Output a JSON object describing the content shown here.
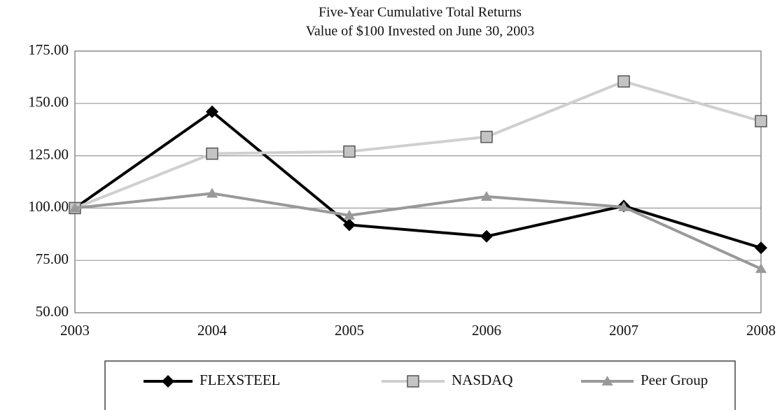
{
  "chart_data": {
    "type": "line",
    "title": "Five-Year Cumulative Total Returns",
    "subtitle": "Value of $100 Invested on June 30, 2003",
    "categories": [
      "2003",
      "2004",
      "2005",
      "2006",
      "2007",
      "2008"
    ],
    "series": [
      {
        "name": "FLEXSTEEL",
        "color": "#000000",
        "marker": "diamond",
        "values": [
          100,
          146,
          92,
          86.5,
          101,
          81
        ]
      },
      {
        "name": "NASDAQ",
        "color": "#cfcfcf",
        "marker": "square",
        "values": [
          100,
          126,
          127,
          134,
          160.5,
          141.5
        ]
      },
      {
        "name": "Peer Group",
        "color": "#999999",
        "marker": "triangle",
        "values": [
          100,
          107,
          96.5,
          105.5,
          100.5,
          71
        ]
      }
    ],
    "ylim": [
      50,
      175
    ],
    "yticks": [
      {
        "value": 50,
        "label": "50.00"
      },
      {
        "value": 75,
        "label": "75.00"
      },
      {
        "value": 100,
        "label": "100.00"
      },
      {
        "value": 125,
        "label": "125.00"
      },
      {
        "value": 150,
        "label": "150.00"
      },
      {
        "value": 175,
        "label": "175.00"
      }
    ],
    "grid": true
  }
}
